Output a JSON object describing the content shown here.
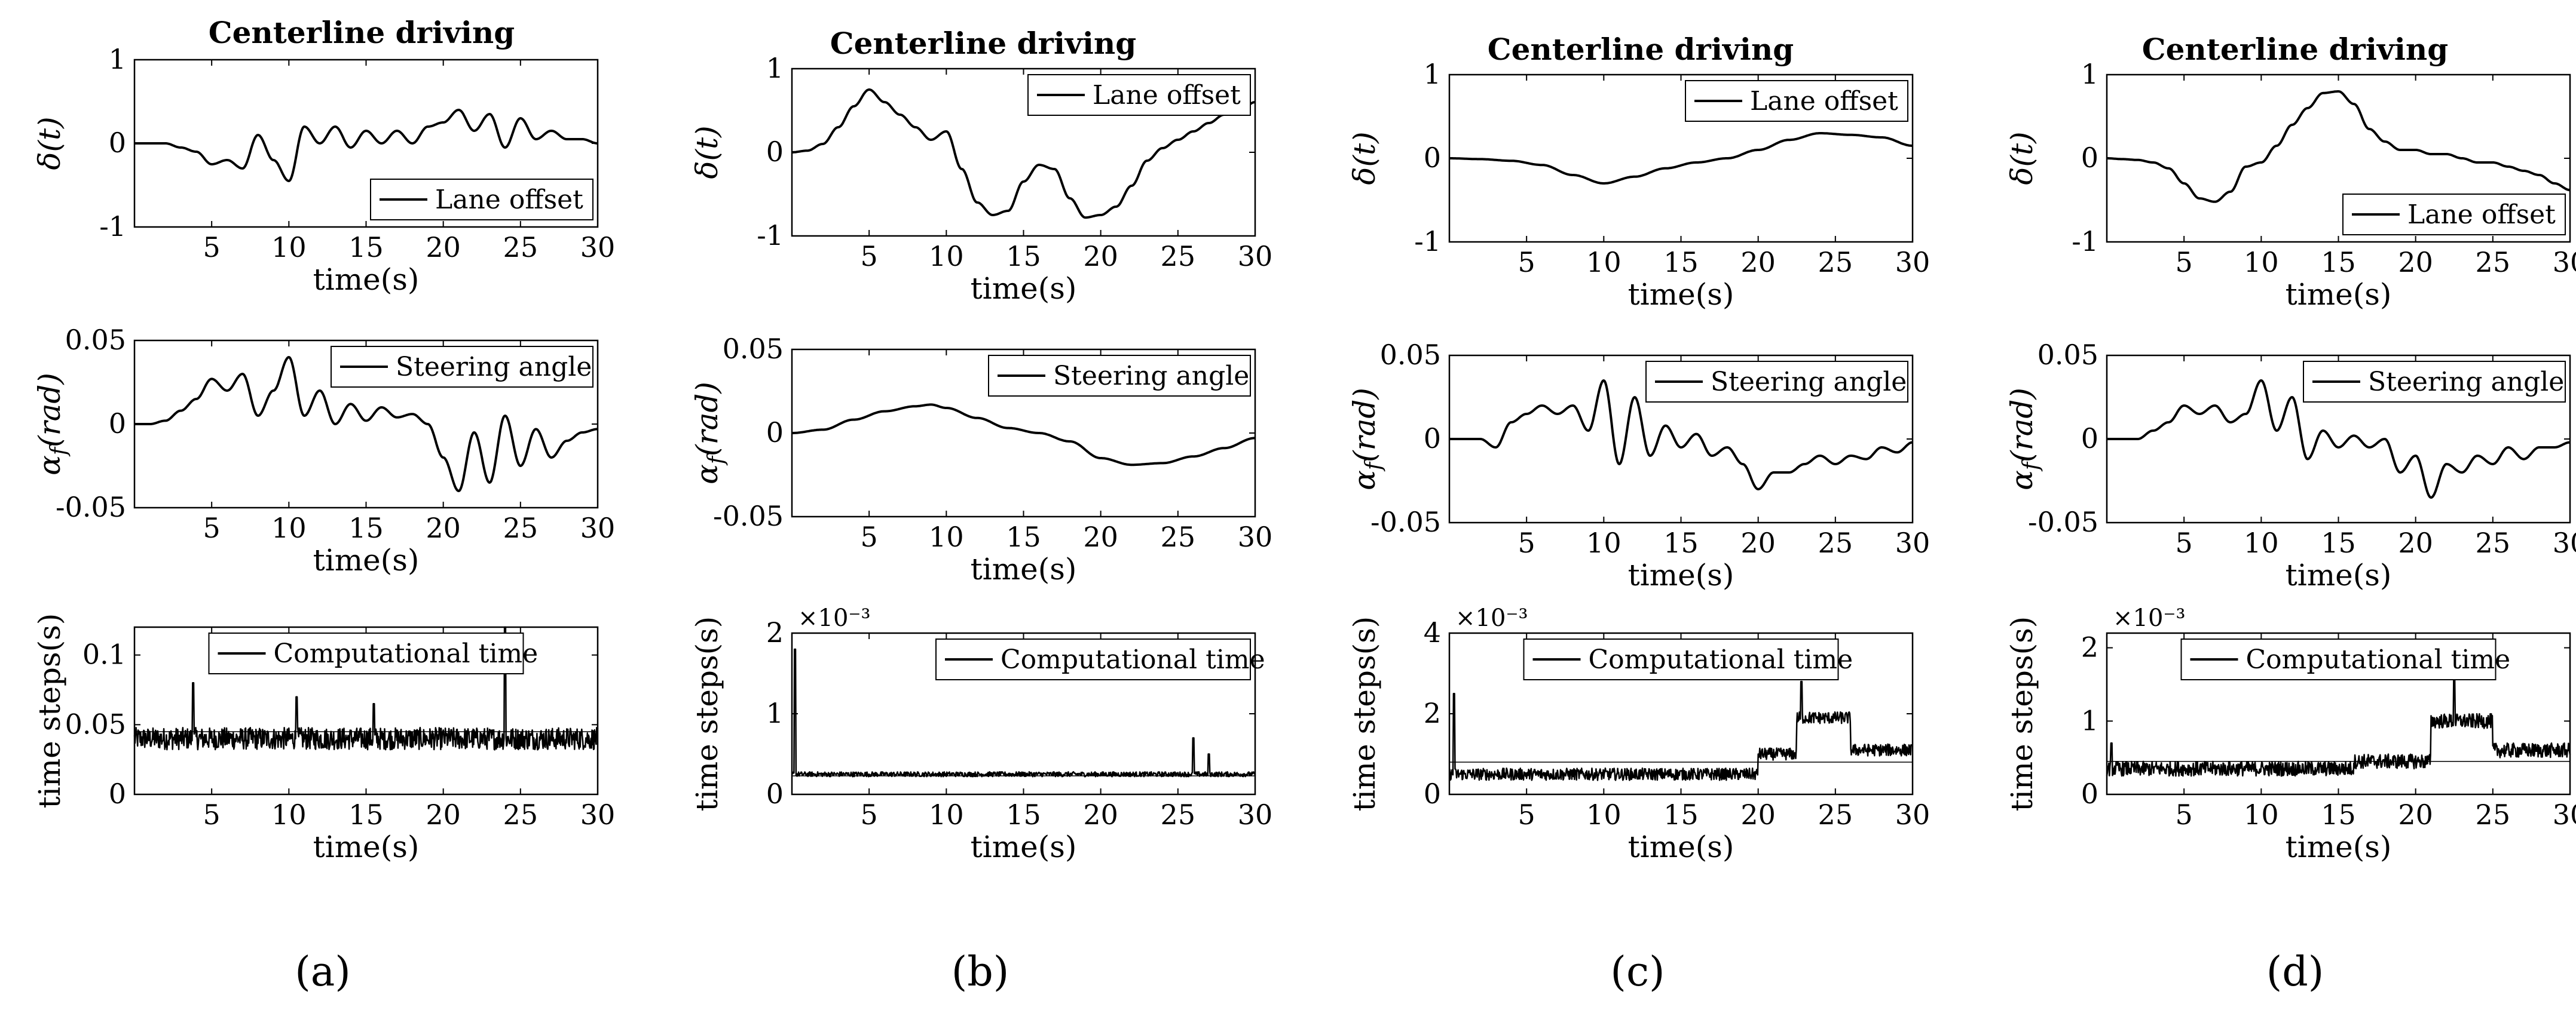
{
  "figure": {
    "panels": [
      {
        "id": "a",
        "label": "(a)",
        "title": "Centerline driving"
      },
      {
        "id": "b",
        "label": "(b)",
        "title": "Centerline driving"
      },
      {
        "id": "c",
        "label": "(c)",
        "title": "Centerline driving"
      },
      {
        "id": "d",
        "label": "(d)",
        "title": "Centerline driving"
      }
    ]
  },
  "chart_data": [
    {
      "panel": "a",
      "row": "offset",
      "type": "line",
      "title": "Centerline driving",
      "xlabel": "time(s)",
      "ylabel": "δ(t)",
      "xlim": [
        0,
        30
      ],
      "ylim": [
        -1,
        1
      ],
      "xticks": [
        "5",
        "10",
        "15",
        "20",
        "25",
        "30"
      ],
      "yticks": [
        "1",
        "0",
        "-1"
      ],
      "legend": "Lane offset",
      "legend_position": "bottom-right",
      "multiplier": "",
      "series": [
        {
          "name": "Lane offset",
          "x": [
            0,
            1,
            2,
            3,
            4,
            5,
            6,
            7,
            8,
            9,
            10,
            11,
            12,
            13,
            14,
            15,
            16,
            17,
            18,
            19,
            20,
            21,
            22,
            23,
            24,
            25,
            26,
            27,
            28,
            29,
            30
          ],
          "y": [
            0,
            0,
            0,
            -0.05,
            -0.1,
            -0.25,
            -0.2,
            -0.3,
            0.1,
            -0.2,
            -0.45,
            0.2,
            0,
            0.2,
            -0.05,
            0.15,
            0,
            0.15,
            0,
            0.2,
            0.25,
            0.4,
            0.15,
            0.35,
            -0.05,
            0.3,
            0.05,
            0.15,
            0.05,
            0.05,
            0
          ]
        }
      ]
    },
    {
      "panel": "a",
      "row": "steering",
      "type": "line",
      "xlabel": "time(s)",
      "ylabel": "α_f(rad)",
      "xlim": [
        0,
        30
      ],
      "ylim": [
        -0.05,
        0.05
      ],
      "xticks": [
        "5",
        "10",
        "15",
        "20",
        "25",
        "30"
      ],
      "yticks": [
        "0.05",
        "0",
        "-0.05"
      ],
      "legend": "Steering angle",
      "legend_position": "top-right",
      "multiplier": "",
      "series": [
        {
          "name": "Steering angle",
          "x": [
            0,
            1,
            2,
            3,
            4,
            5,
            6,
            7,
            8,
            9,
            10,
            11,
            12,
            13,
            14,
            15,
            16,
            17,
            18,
            19,
            20,
            21,
            22,
            23,
            24,
            25,
            26,
            27,
            28,
            29,
            30
          ],
          "y": [
            0,
            0,
            0.002,
            0.008,
            0.015,
            0.027,
            0.02,
            0.03,
            0.005,
            0.02,
            0.04,
            0.005,
            0.02,
            0,
            0.012,
            0.002,
            0.01,
            0.004,
            0.006,
            0,
            -0.02,
            -0.04,
            -0.005,
            -0.035,
            0.005,
            -0.025,
            -0.003,
            -0.02,
            -0.01,
            -0.005,
            -0.003
          ]
        }
      ]
    },
    {
      "panel": "a",
      "row": "comptime",
      "type": "line",
      "xlabel": "time(s)",
      "ylabel": "time steps(s)",
      "xlim": [
        0,
        30
      ],
      "ylim": [
        0,
        0.12
      ],
      "xticks": [
        "5",
        "10",
        "15",
        "20",
        "25",
        "30"
      ],
      "yticks": [
        "0.1",
        "0.05",
        "0"
      ],
      "legend": "Computational time",
      "legend_position": "top",
      "multiplier": "",
      "series": [
        {
          "name": "Computational time",
          "base": 0.04,
          "noise": 0.008,
          "mean": 0.045,
          "spikes": [
            [
              3.8,
              0.08
            ],
            [
              10.5,
              0.07
            ],
            [
              15.5,
              0.065
            ],
            [
              24,
              0.12
            ]
          ]
        }
      ]
    },
    {
      "panel": "b",
      "row": "offset",
      "type": "line",
      "title": "Centerline driving",
      "xlabel": "time(s)",
      "ylabel": "δ(t)",
      "xlim": [
        0,
        30
      ],
      "ylim": [
        -1,
        1
      ],
      "xticks": [
        "5",
        "10",
        "15",
        "20",
        "25",
        "30"
      ],
      "yticks": [
        "1",
        "0",
        "-1"
      ],
      "legend": "Lane offset",
      "legend_position": "top-right",
      "multiplier": "",
      "series": [
        {
          "name": "Lane offset",
          "x": [
            0,
            1,
            2,
            3,
            4,
            5,
            6,
            7,
            8,
            9,
            10,
            11,
            12,
            13,
            14,
            15,
            16,
            17,
            18,
            19,
            20,
            21,
            22,
            23,
            24,
            25,
            26,
            27,
            28,
            29,
            30
          ],
          "y": [
            0,
            0.02,
            0.1,
            0.3,
            0.55,
            0.75,
            0.6,
            0.45,
            0.3,
            0.15,
            0.25,
            -0.2,
            -0.6,
            -0.75,
            -0.7,
            -0.35,
            -0.15,
            -0.2,
            -0.55,
            -0.78,
            -0.75,
            -0.65,
            -0.4,
            -0.1,
            0.05,
            0.15,
            0.25,
            0.35,
            0.45,
            0.5,
            0.6
          ]
        }
      ]
    },
    {
      "panel": "b",
      "row": "steering",
      "type": "line",
      "xlabel": "time(s)",
      "ylabel": "α_f(rad)",
      "xlim": [
        0,
        30
      ],
      "ylim": [
        -0.05,
        0.05
      ],
      "xticks": [
        "5",
        "10",
        "15",
        "20",
        "25",
        "30"
      ],
      "yticks": [
        "0.05",
        "0",
        "-0.05"
      ],
      "legend": "Steering angle",
      "legend_position": "top-right",
      "multiplier": "",
      "series": [
        {
          "name": "Steering angle",
          "x": [
            0,
            2,
            4,
            6,
            8,
            9,
            10,
            12,
            14,
            16,
            18,
            20,
            22,
            24,
            26,
            28,
            30
          ],
          "y": [
            0,
            0.002,
            0.008,
            0.013,
            0.016,
            0.017,
            0.015,
            0.009,
            0.003,
            0,
            -0.005,
            -0.015,
            -0.019,
            -0.018,
            -0.014,
            -0.009,
            -0.003
          ]
        }
      ]
    },
    {
      "panel": "b",
      "row": "comptime",
      "type": "line",
      "xlabel": "time(s)",
      "ylabel": "time steps(s)",
      "xlim": [
        0,
        30
      ],
      "ylim": [
        0,
        0.002
      ],
      "xticks": [
        "5",
        "10",
        "15",
        "20",
        "25",
        "30"
      ],
      "yticks": [
        "2",
        "1",
        "0"
      ],
      "legend": "Computational time",
      "legend_position": "top-right",
      "multiplier": "×10⁻³",
      "series": [
        {
          "name": "Computational time",
          "base": 0.00025,
          "noise": 3e-05,
          "mean": 0.00023,
          "spikes": [
            [
              0.2,
              0.0018
            ],
            [
              26,
              0.0007
            ],
            [
              27,
              0.0005
            ]
          ]
        }
      ]
    },
    {
      "panel": "c",
      "row": "offset",
      "type": "line",
      "title": "Centerline driving",
      "xlabel": "time(s)",
      "ylabel": "δ(t)",
      "xlim": [
        0,
        30
      ],
      "ylim": [
        -1,
        1
      ],
      "xticks": [
        "5",
        "10",
        "15",
        "20",
        "25",
        "30"
      ],
      "yticks": [
        "1",
        "0",
        "-1"
      ],
      "legend": "Lane offset",
      "legend_position": "top-right",
      "multiplier": "",
      "series": [
        {
          "name": "Lane offset",
          "x": [
            0,
            2,
            4,
            6,
            8,
            10,
            12,
            14,
            16,
            18,
            20,
            22,
            24,
            26,
            28,
            30
          ],
          "y": [
            0,
            -0.01,
            -0.03,
            -0.08,
            -0.2,
            -0.3,
            -0.22,
            -0.12,
            -0.05,
            0,
            0.1,
            0.22,
            0.3,
            0.28,
            0.25,
            0.15
          ]
        }
      ]
    },
    {
      "panel": "c",
      "row": "steering",
      "type": "line",
      "xlabel": "time(s)",
      "ylabel": "α_f(rad)",
      "xlim": [
        0,
        30
      ],
      "ylim": [
        -0.05,
        0.05
      ],
      "xticks": [
        "5",
        "10",
        "15",
        "20",
        "25",
        "30"
      ],
      "yticks": [
        "0.05",
        "0",
        "-0.05"
      ],
      "legend": "Steering angle",
      "legend_position": "top-right",
      "multiplier": "",
      "series": [
        {
          "name": "Steering angle",
          "x": [
            0,
            1,
            2,
            3,
            4,
            5,
            6,
            7,
            8,
            9,
            10,
            11,
            12,
            13,
            14,
            15,
            16,
            17,
            18,
            19,
            20,
            21,
            22,
            23,
            24,
            25,
            26,
            27,
            28,
            29,
            30
          ],
          "y": [
            0,
            0,
            0,
            -0.005,
            0.01,
            0.015,
            0.02,
            0.015,
            0.02,
            0.005,
            0.035,
            -0.015,
            0.025,
            -0.01,
            0.008,
            -0.005,
            0.003,
            -0.01,
            -0.005,
            -0.015,
            -0.03,
            -0.02,
            -0.02,
            -0.015,
            -0.01,
            -0.015,
            -0.01,
            -0.012,
            -0.005,
            -0.008,
            -0.002
          ]
        }
      ]
    },
    {
      "panel": "c",
      "row": "comptime",
      "type": "line",
      "xlabel": "time(s)",
      "ylabel": "time steps(s)",
      "xlim": [
        0,
        30
      ],
      "ylim": [
        0,
        0.004
      ],
      "xticks": [
        "5",
        "10",
        "15",
        "20",
        "25",
        "30"
      ],
      "yticks": [
        "4",
        "2",
        "0"
      ],
      "legend": "Computational time",
      "legend_position": "top",
      "multiplier": "×10⁻³",
      "series": [
        {
          "name": "Computational time",
          "segments": [
            [
              0,
              20,
              0.0005
            ],
            [
              20,
              22.5,
              0.001
            ],
            [
              22.5,
              26,
              0.0019
            ],
            [
              26,
              30,
              0.0011
            ]
          ],
          "noise": 0.00015,
          "mean": 0.0008,
          "spikes": [
            [
              0.3,
              0.0025
            ],
            [
              22.8,
              0.0028
            ]
          ]
        }
      ]
    },
    {
      "panel": "d",
      "row": "offset",
      "type": "line",
      "title": "Centerline driving",
      "xlabel": "time(s)",
      "ylabel": "δ(t)",
      "xlim": [
        0,
        30
      ],
      "ylim": [
        -1,
        1
      ],
      "xticks": [
        "5",
        "10",
        "15",
        "20",
        "25",
        "30"
      ],
      "yticks": [
        "1",
        "0",
        "-1"
      ],
      "legend": "Lane offset",
      "legend_position": "bottom-right",
      "multiplier": "",
      "series": [
        {
          "name": "Lane offset",
          "x": [
            0,
            1,
            2,
            3,
            4,
            5,
            6,
            7,
            8,
            9,
            10,
            11,
            12,
            13,
            14,
            15,
            16,
            17,
            18,
            19,
            20,
            21,
            22,
            23,
            24,
            25,
            26,
            27,
            28,
            29,
            30
          ],
          "y": [
            0,
            -0.01,
            -0.02,
            -0.05,
            -0.12,
            -0.3,
            -0.48,
            -0.52,
            -0.4,
            -0.1,
            -0.05,
            0.15,
            0.4,
            0.6,
            0.78,
            0.8,
            0.65,
            0.35,
            0.2,
            0.1,
            0.1,
            0.05,
            0.05,
            0,
            -0.05,
            -0.05,
            -0.1,
            -0.15,
            -0.2,
            -0.3,
            -0.38
          ]
        }
      ]
    },
    {
      "panel": "d",
      "row": "steering",
      "type": "line",
      "xlabel": "time(s)",
      "ylabel": "α_f(rad)",
      "xlim": [
        0,
        30
      ],
      "ylim": [
        -0.05,
        0.05
      ],
      "xticks": [
        "5",
        "10",
        "15",
        "20",
        "25",
        "30"
      ],
      "yticks": [
        "0.05",
        "0",
        "-0.05"
      ],
      "legend": "Steering angle",
      "legend_position": "top-right",
      "multiplier": "",
      "series": [
        {
          "name": "Steering angle",
          "x": [
            0,
            1,
            2,
            3,
            4,
            5,
            6,
            7,
            8,
            9,
            10,
            11,
            12,
            13,
            14,
            15,
            16,
            17,
            18,
            19,
            20,
            21,
            22,
            23,
            24,
            25,
            26,
            27,
            28,
            29,
            30
          ],
          "y": [
            0,
            0,
            0,
            0.005,
            0.01,
            0.02,
            0.015,
            0.02,
            0.01,
            0.015,
            0.035,
            0.005,
            0.025,
            -0.012,
            0.005,
            -0.005,
            0.002,
            -0.005,
            0,
            -0.02,
            -0.01,
            -0.035,
            -0.015,
            -0.02,
            -0.01,
            -0.015,
            -0.005,
            -0.012,
            -0.005,
            -0.005,
            -0.002
          ]
        }
      ]
    },
    {
      "panel": "d",
      "row": "comptime",
      "type": "line",
      "xlabel": "time(s)",
      "ylabel": "time steps(s)",
      "xlim": [
        0,
        30
      ],
      "ylim": [
        0,
        0.0022
      ],
      "xticks": [
        "5",
        "10",
        "15",
        "20",
        "25",
        "30"
      ],
      "yticks": [
        "2",
        "1",
        "0"
      ],
      "legend": "Computational time",
      "legend_position": "top",
      "multiplier": "×10⁻³",
      "series": [
        {
          "name": "Computational time",
          "segments": [
            [
              0,
              16,
              0.00035
            ],
            [
              16,
              21,
              0.00045
            ],
            [
              21,
              25,
              0.001
            ],
            [
              25,
              30,
              0.0006
            ]
          ],
          "noise": 0.0001,
          "mean": 0.00045,
          "spikes": [
            [
              22.5,
              0.0016
            ],
            [
              0.3,
              0.0007
            ]
          ]
        }
      ]
    }
  ]
}
